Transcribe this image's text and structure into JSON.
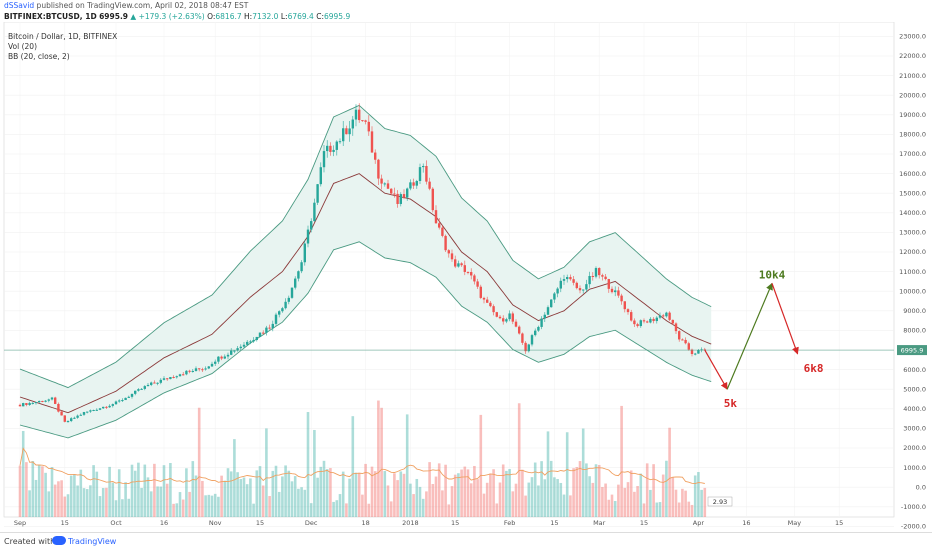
{
  "header": {
    "author": "dSSavid",
    "published": " published on TradingView.com, April 02, 2018 08:47 EST",
    "symbol_line": "BITFINEX:BTCUSD, 1D",
    "last": "6995.9",
    "change": "▲ +179.3 (+2.63%)",
    "o_label": "O:",
    "o": "6816.7",
    "h_label": "H:",
    "h": "7132.0",
    "l_label": "L:",
    "l": "6769.4",
    "c_label": "C:",
    "c": "6995.9"
  },
  "pane_labels": {
    "main": "Bitcoin / Dollar, 1D, BITFINEX",
    "vol": "Vol (20)",
    "bb": "BB (20, close, 2)"
  },
  "last_price_tag": "6995.9",
  "volume_axis_tag": "2.93",
  "annotations": {
    "low_target": "5k",
    "high_target": "10k4",
    "final_target": "6k8"
  },
  "footer": {
    "created_with": "Created with",
    "brand": "TradingView"
  },
  "colors": {
    "up": "#26a69a",
    "down": "#ef5350",
    "bb_fill": "#e8f4f1",
    "bb_line": "#4a9a82",
    "basis": "#8b3a3a",
    "vol_ma": "#f0a060",
    "ann_green": "#4d7a1f",
    "ann_red": "#d62828"
  },
  "chart_data": {
    "type": "line",
    "title": "Bitcoin / Dollar, 1D, BITFINEX",
    "price_axis": {
      "range": [
        -3000,
        23000
      ],
      "step": 1000
    },
    "x_ticks": [
      "Sep",
      "15",
      "Oct",
      "16",
      "Nov",
      "15",
      "Dec",
      "18",
      "2018",
      "15",
      "Feb",
      "15",
      "Mar",
      "15",
      "Apr",
      "16",
      "May",
      "15"
    ],
    "x_tick_days": [
      0,
      14,
      30,
      45,
      61,
      75,
      91,
      108,
      122,
      136,
      153,
      167,
      181,
      195,
      212,
      227,
      242,
      256
    ],
    "series": [
      {
        "name": "",
        "values": [
          [
            0,
            4200
          ],
          [
            10,
            4500
          ],
          [
            14,
            3300
          ],
          [
            20,
            3800
          ],
          [
            30,
            4300
          ],
          [
            40,
            5200
          ],
          [
            50,
            5800
          ],
          [
            58,
            6100
          ],
          [
            61,
            6500
          ],
          [
            70,
            7300
          ],
          [
            78,
            8200
          ],
          [
            84,
            9800
          ],
          [
            88,
            11500
          ],
          [
            92,
            14500
          ],
          [
            95,
            17000
          ],
          [
            100,
            17800
          ],
          [
            105,
            19000
          ],
          [
            108,
            18500
          ],
          [
            112,
            16000
          ],
          [
            118,
            14500
          ],
          [
            122,
            15300
          ],
          [
            126,
            16500
          ],
          [
            130,
            13500
          ],
          [
            135,
            11500
          ],
          [
            140,
            11000
          ],
          [
            145,
            9500
          ],
          [
            150,
            8500
          ],
          [
            153,
            8800
          ],
          [
            158,
            7000
          ],
          [
            162,
            8300
          ],
          [
            167,
            9800
          ],
          [
            170,
            10800
          ],
          [
            175,
            10000
          ],
          [
            180,
            11000
          ],
          [
            183,
            10500
          ],
          [
            188,
            9500
          ],
          [
            192,
            8300
          ],
          [
            197,
            8500
          ],
          [
            202,
            8900
          ],
          [
            206,
            7600
          ],
          [
            210,
            6850
          ],
          [
            214,
            6995.9
          ]
        ]
      },
      {
        "name": "BB (20, close, 2)",
        "values": [
          [
            0,
            4600
          ],
          [
            15,
            3800
          ],
          [
            30,
            4900
          ],
          [
            45,
            6600
          ],
          [
            60,
            7800
          ],
          [
            72,
            9700
          ],
          [
            82,
            11000
          ],
          [
            90,
            12800
          ],
          [
            98,
            15500
          ],
          [
            106,
            16000
          ],
          [
            114,
            15000
          ],
          [
            122,
            14700
          ],
          [
            130,
            13800
          ],
          [
            138,
            12000
          ],
          [
            146,
            11000
          ],
          [
            154,
            9300
          ],
          [
            162,
            8500
          ],
          [
            170,
            9000
          ],
          [
            178,
            10100
          ],
          [
            186,
            10500
          ],
          [
            194,
            9500
          ],
          [
            202,
            8500
          ],
          [
            210,
            7700
          ],
          [
            216,
            7300
          ]
        ]
      }
    ],
    "forecast": [
      [
        214,
        6995.9
      ],
      [
        221,
        5000
      ],
      [
        235,
        10400
      ],
      [
        243,
        6800
      ]
    ],
    "annotations": [
      "5k",
      "10k4",
      "6k8"
    ]
  }
}
